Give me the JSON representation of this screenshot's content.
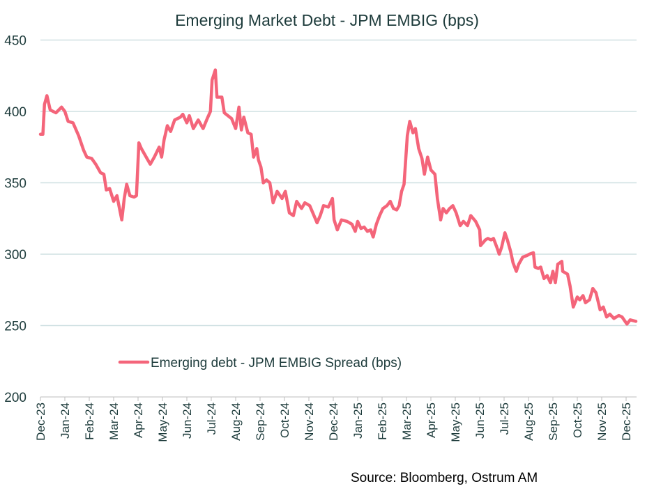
{
  "chart_data": {
    "type": "line",
    "title": "Emerging Market Debt - JPM EMBIG (bps)",
    "xlabel": "",
    "ylabel": "",
    "ylim": [
      200,
      450
    ],
    "yticks": [
      200,
      250,
      300,
      350,
      400,
      450
    ],
    "xticks": [
      "Dec-23",
      "Jan-24",
      "Feb-24",
      "Mar-24",
      "Apr-24",
      "May-24",
      "Jun-24",
      "Jul-24",
      "Aug-24",
      "Sep-24",
      "Oct-24",
      "Nov-24",
      "Dec-24",
      "Jan-25",
      "Feb-25",
      "Mar-25",
      "Apr-25",
      "May-25",
      "Jun-25",
      "Jul-25",
      "Aug-25",
      "Sep-25",
      "Oct-25",
      "Nov-25",
      "Dec-25"
    ],
    "grid": "horizontal",
    "legend_position": "bottom-left inside",
    "series": [
      {
        "name": "Emerging debt - JPM EMBIG Spread  (bps)",
        "color": "#f4657a",
        "points": [
          [
            "2023-12-01",
            384
          ],
          [
            "2023-12-04",
            384
          ],
          [
            "2023-12-06",
            405
          ],
          [
            "2023-12-09",
            411
          ],
          [
            "2023-12-13",
            401
          ],
          [
            "2023-12-20",
            399
          ],
          [
            "2023-12-27",
            403
          ],
          [
            "2024-01-01",
            400
          ],
          [
            "2024-01-05",
            393
          ],
          [
            "2024-01-11",
            392
          ],
          [
            "2024-01-18",
            383
          ],
          [
            "2024-01-24",
            373
          ],
          [
            "2024-01-28",
            368
          ],
          [
            "2024-02-04",
            367
          ],
          [
            "2024-02-09",
            363
          ],
          [
            "2024-02-15",
            357
          ],
          [
            "2024-02-19",
            356
          ],
          [
            "2024-02-22",
            345
          ],
          [
            "2024-02-26",
            346
          ],
          [
            "2024-03-01",
            337
          ],
          [
            "2024-03-05",
            341
          ],
          [
            "2024-03-11",
            324
          ],
          [
            "2024-03-14",
            339
          ],
          [
            "2024-03-17",
            349
          ],
          [
            "2024-03-21",
            341
          ],
          [
            "2024-03-26",
            340
          ],
          [
            "2024-03-29",
            341
          ],
          [
            "2024-04-02",
            378
          ],
          [
            "2024-04-05",
            374
          ],
          [
            "2024-04-11",
            368
          ],
          [
            "2024-04-16",
            363
          ],
          [
            "2024-04-21",
            368
          ],
          [
            "2024-04-27",
            375
          ],
          [
            "2024-04-30",
            368
          ],
          [
            "2024-05-03",
            380
          ],
          [
            "2024-05-07",
            390
          ],
          [
            "2024-05-11",
            386
          ],
          [
            "2024-05-16",
            394
          ],
          [
            "2024-05-23",
            396
          ],
          [
            "2024-05-26",
            398
          ],
          [
            "2024-05-31",
            392
          ],
          [
            "2024-06-04",
            397
          ],
          [
            "2024-06-09",
            388
          ],
          [
            "2024-06-15",
            394
          ],
          [
            "2024-06-21",
            388
          ],
          [
            "2024-06-26",
            395
          ],
          [
            "2024-06-30",
            400
          ],
          [
            "2024-07-02",
            422
          ],
          [
            "2024-07-06",
            429
          ],
          [
            "2024-07-08",
            410
          ],
          [
            "2024-07-14",
            410
          ],
          [
            "2024-07-17",
            399
          ],
          [
            "2024-07-26",
            395
          ],
          [
            "2024-07-31",
            388
          ],
          [
            "2024-08-05",
            403
          ],
          [
            "2024-08-08",
            387
          ],
          [
            "2024-08-11",
            396
          ],
          [
            "2024-08-16",
            385
          ],
          [
            "2024-08-20",
            384
          ],
          [
            "2024-08-23",
            368
          ],
          [
            "2024-08-27",
            374
          ],
          [
            "2024-08-29",
            366
          ],
          [
            "2024-09-02",
            361
          ],
          [
            "2024-09-05",
            350
          ],
          [
            "2024-09-09",
            352
          ],
          [
            "2024-09-13",
            350
          ],
          [
            "2024-09-17",
            336
          ],
          [
            "2024-09-22",
            344
          ],
          [
            "2024-09-28",
            339
          ],
          [
            "2024-10-02",
            344
          ],
          [
            "2024-10-07",
            329
          ],
          [
            "2024-10-12",
            327
          ],
          [
            "2024-10-16",
            337
          ],
          [
            "2024-10-22",
            332
          ],
          [
            "2024-10-26",
            336
          ],
          [
            "2024-11-02",
            334
          ],
          [
            "2024-11-11",
            322
          ],
          [
            "2024-11-15",
            327
          ],
          [
            "2024-11-19",
            334
          ],
          [
            "2024-11-25",
            333
          ],
          [
            "2024-11-30",
            339
          ],
          [
            "2024-12-02",
            324
          ],
          [
            "2024-12-06",
            317
          ],
          [
            "2024-12-11",
            324
          ],
          [
            "2024-12-18",
            323
          ],
          [
            "2024-12-24",
            321
          ],
          [
            "2024-12-28",
            316
          ],
          [
            "2024-12-31",
            323
          ],
          [
            "2025-01-05",
            318
          ],
          [
            "2025-01-09",
            319
          ],
          [
            "2025-01-13",
            316
          ],
          [
            "2025-01-17",
            317
          ],
          [
            "2025-01-20",
            312
          ],
          [
            "2025-01-24",
            321
          ],
          [
            "2025-01-28",
            327
          ],
          [
            "2025-02-02",
            332
          ],
          [
            "2025-02-07",
            334
          ],
          [
            "2025-02-11",
            337
          ],
          [
            "2025-02-15",
            332
          ],
          [
            "2025-02-19",
            331
          ],
          [
            "2025-02-22",
            334
          ],
          [
            "2025-02-25",
            344
          ],
          [
            "2025-02-28",
            349
          ],
          [
            "2025-03-02",
            383
          ],
          [
            "2025-03-05",
            393
          ],
          [
            "2025-03-09",
            385
          ],
          [
            "2025-03-12",
            388
          ],
          [
            "2025-03-16",
            374
          ],
          [
            "2025-03-20",
            367
          ],
          [
            "2025-03-23",
            356
          ],
          [
            "2025-03-27",
            368
          ],
          [
            "2025-04-01",
            359
          ],
          [
            "2025-04-06",
            356
          ],
          [
            "2025-04-09",
            339
          ],
          [
            "2025-04-13",
            324
          ],
          [
            "2025-04-16",
            332
          ],
          [
            "2025-04-20",
            329
          ],
          [
            "2025-04-24",
            332
          ],
          [
            "2025-04-28",
            334
          ],
          [
            "2025-05-02",
            329
          ],
          [
            "2025-05-07",
            320
          ],
          [
            "2025-05-11",
            323
          ],
          [
            "2025-05-16",
            320
          ],
          [
            "2025-05-20",
            327
          ],
          [
            "2025-05-26",
            323
          ],
          [
            "2025-05-31",
            317
          ],
          [
            "2025-06-02",
            306
          ],
          [
            "2025-06-08",
            310
          ],
          [
            "2025-06-11",
            311
          ],
          [
            "2025-06-15",
            310
          ],
          [
            "2025-06-18",
            311
          ],
          [
            "2025-06-22",
            305
          ],
          [
            "2025-06-25",
            300
          ],
          [
            "2025-06-28",
            305
          ],
          [
            "2025-07-02",
            315
          ],
          [
            "2025-07-05",
            310
          ],
          [
            "2025-07-09",
            302
          ],
          [
            "2025-07-12",
            294
          ],
          [
            "2025-07-16",
            288
          ],
          [
            "2025-07-19",
            293
          ],
          [
            "2025-07-24",
            298
          ],
          [
            "2025-07-29",
            299
          ],
          [
            "2025-08-02",
            300
          ],
          [
            "2025-08-07",
            301
          ],
          [
            "2025-08-09",
            291
          ],
          [
            "2025-08-13",
            290
          ],
          [
            "2025-08-16",
            291
          ],
          [
            "2025-08-20",
            283
          ],
          [
            "2025-08-24",
            285
          ],
          [
            "2025-08-28",
            280
          ],
          [
            "2025-09-01",
            288
          ],
          [
            "2025-09-04",
            280
          ],
          [
            "2025-09-07",
            293
          ],
          [
            "2025-09-12",
            295
          ],
          [
            "2025-09-13",
            288
          ],
          [
            "2025-09-19",
            286
          ],
          [
            "2025-09-22",
            278
          ],
          [
            "2025-09-26",
            263
          ],
          [
            "2025-10-01",
            270
          ],
          [
            "2025-10-04",
            268
          ],
          [
            "2025-10-08",
            271
          ],
          [
            "2025-10-11",
            266
          ],
          [
            "2025-10-16",
            268
          ],
          [
            "2025-10-20",
            276
          ],
          [
            "2025-10-24",
            273
          ],
          [
            "2025-10-29",
            261
          ],
          [
            "2025-11-03",
            263
          ],
          [
            "2025-11-07",
            256
          ],
          [
            "2025-11-11",
            258
          ],
          [
            "2025-11-16",
            255
          ],
          [
            "2025-11-22",
            257
          ],
          [
            "2025-11-26",
            256
          ],
          [
            "2025-12-02",
            251
          ],
          [
            "2025-12-06",
            254
          ],
          [
            "2025-12-13",
            253
          ]
        ]
      }
    ]
  },
  "source": "Source: Bloomberg, Ostrum AM"
}
